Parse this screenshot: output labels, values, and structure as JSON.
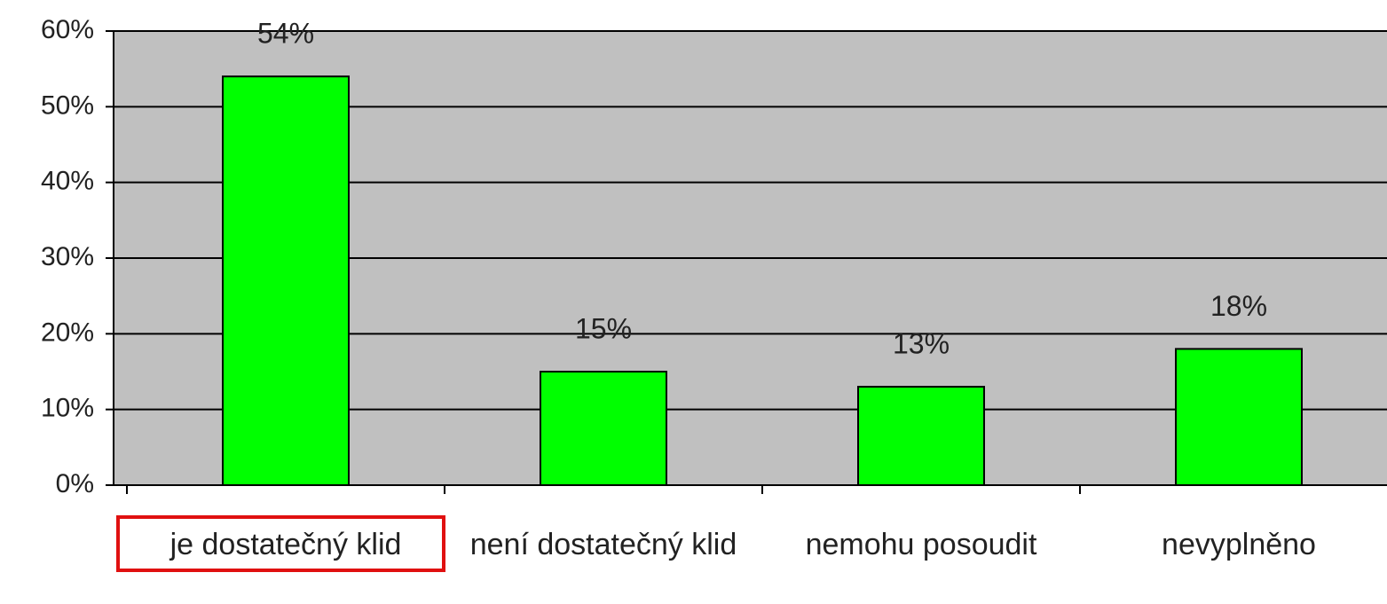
{
  "chart_data": {
    "type": "bar",
    "categories": [
      "je dostatečný klid",
      "není dostatečný klid",
      "nemohu posoudit",
      "nevyplněno"
    ],
    "values": [
      54,
      15,
      13,
      18
    ],
    "value_labels": [
      "54%",
      "15%",
      "13%",
      "18%"
    ],
    "color": "#00ff00",
    "ylim": [
      0,
      60
    ],
    "yticks": [
      {
        "value": 0,
        "label": "0%"
      },
      {
        "value": 10,
        "label": "10%"
      },
      {
        "value": 20,
        "label": "20%"
      },
      {
        "value": 30,
        "label": "30%"
      },
      {
        "value": 40,
        "label": "40%"
      },
      {
        "value": 50,
        "label": "50%"
      },
      {
        "value": 60,
        "label": "60%"
      }
    ],
    "grid": true
  }
}
